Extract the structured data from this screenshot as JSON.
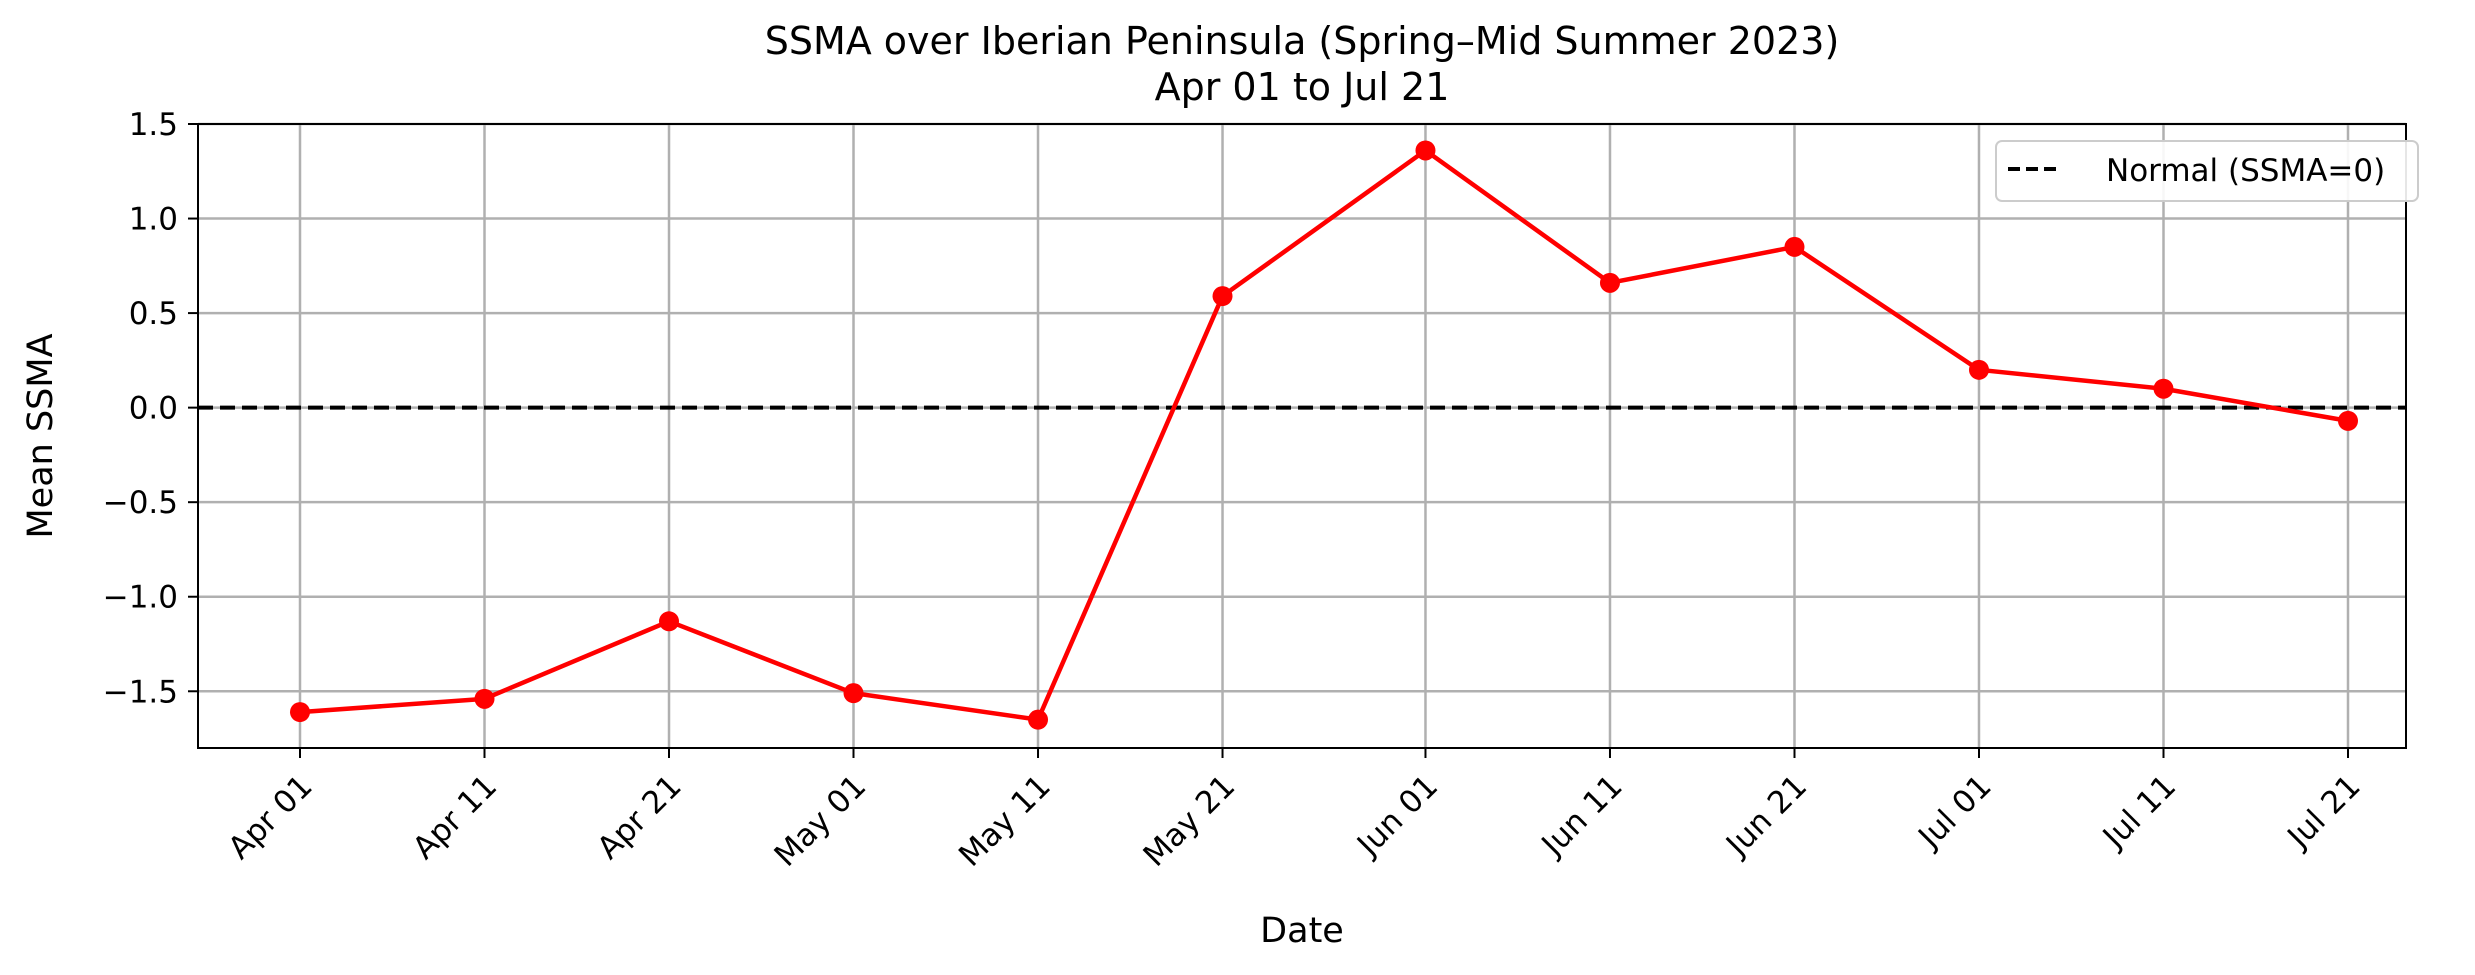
{
  "chart_data": {
    "type": "line",
    "title": "SSMA over Iberian Peninsula (Spring–Mid Summer 2023)",
    "subtitle": "Apr 01 to Jul 21",
    "xlabel": "Date",
    "ylabel": "Mean SSMA",
    "x": [
      "2023-04-01",
      "2023-04-11",
      "2023-04-21",
      "2023-05-01",
      "2023-05-11",
      "2023-05-21",
      "2023-06-01",
      "2023-06-11",
      "2023-06-21",
      "2023-07-01",
      "2023-07-11",
      "2023-07-21"
    ],
    "xtick_labels": [
      "Apr 01",
      "Apr 11",
      "Apr 21",
      "May 01",
      "May 11",
      "May 21",
      "Jun 01",
      "Jun 11",
      "Jun 21",
      "Jul 01",
      "Jul 11",
      "Jul 21"
    ],
    "yticks": [
      -1.5,
      -1.0,
      -0.5,
      0.0,
      0.5,
      1.0,
      1.5
    ],
    "ytick_labels": [
      "−1.5",
      "−1.0",
      "−0.5",
      "0.0",
      "0.5",
      "1.0",
      "1.5"
    ],
    "ylim": [
      -1.8,
      1.5
    ],
    "grid": true,
    "series": [
      {
        "values": [
          -1.61,
          -1.54,
          -1.13,
          -1.51,
          -1.65,
          0.59,
          1.36,
          0.66,
          0.85,
          0.2,
          0.1,
          -0.07
        ],
        "color": "#ff0000",
        "marker": "circle"
      }
    ],
    "reference_line": {
      "y": 0,
      "name": "Normal (SSMA=0)",
      "color": "#000000",
      "style": "dashed"
    },
    "legend_position": "top-right"
  }
}
